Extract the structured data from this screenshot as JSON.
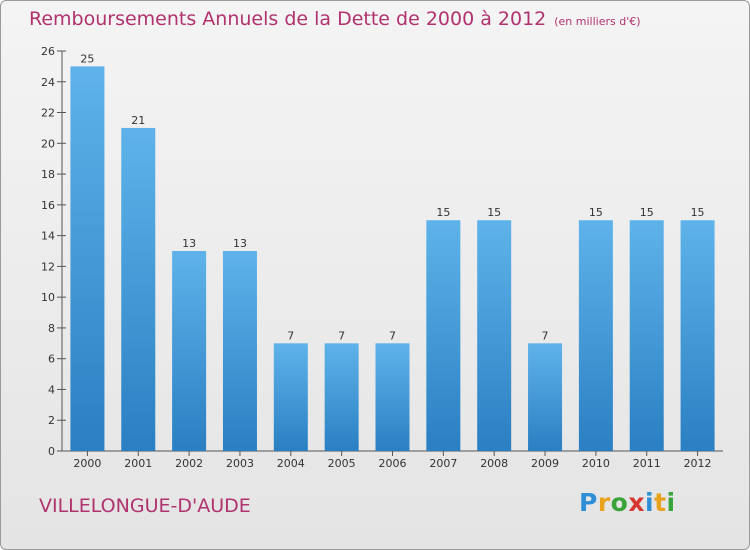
{
  "title": "Remboursements Annuels de la Dette de 2000 à 2012",
  "subtitle": "(en milliers d'€)",
  "commune": "VILLELONGUE-D'AUDE",
  "logo_letters": [
    "P",
    "r",
    "o",
    "x",
    "i",
    "t",
    "i"
  ],
  "logo_colors": [
    "#2f8fd6",
    "#e8a21b",
    "#3aa43a",
    "#d6382f",
    "#2f8fd6",
    "#e8a21b",
    "#3aa43a"
  ],
  "colors": {
    "title": "#b0326e",
    "bar_top": "#5fb3ea",
    "bar_bottom": "#2a7fc2"
  },
  "chart_data": {
    "type": "bar",
    "categories": [
      "2000",
      "2001",
      "2002",
      "2003",
      "2004",
      "2005",
      "2006",
      "2007",
      "2008",
      "2009",
      "2010",
      "2011",
      "2012"
    ],
    "values": [
      25,
      21,
      13,
      13,
      7,
      7,
      7,
      15,
      15,
      7,
      15,
      15,
      15
    ],
    "ylim": [
      0,
      26
    ],
    "yticks": [
      0,
      2,
      4,
      6,
      8,
      10,
      12,
      14,
      16,
      18,
      20,
      22,
      24,
      26
    ],
    "grid": false
  }
}
